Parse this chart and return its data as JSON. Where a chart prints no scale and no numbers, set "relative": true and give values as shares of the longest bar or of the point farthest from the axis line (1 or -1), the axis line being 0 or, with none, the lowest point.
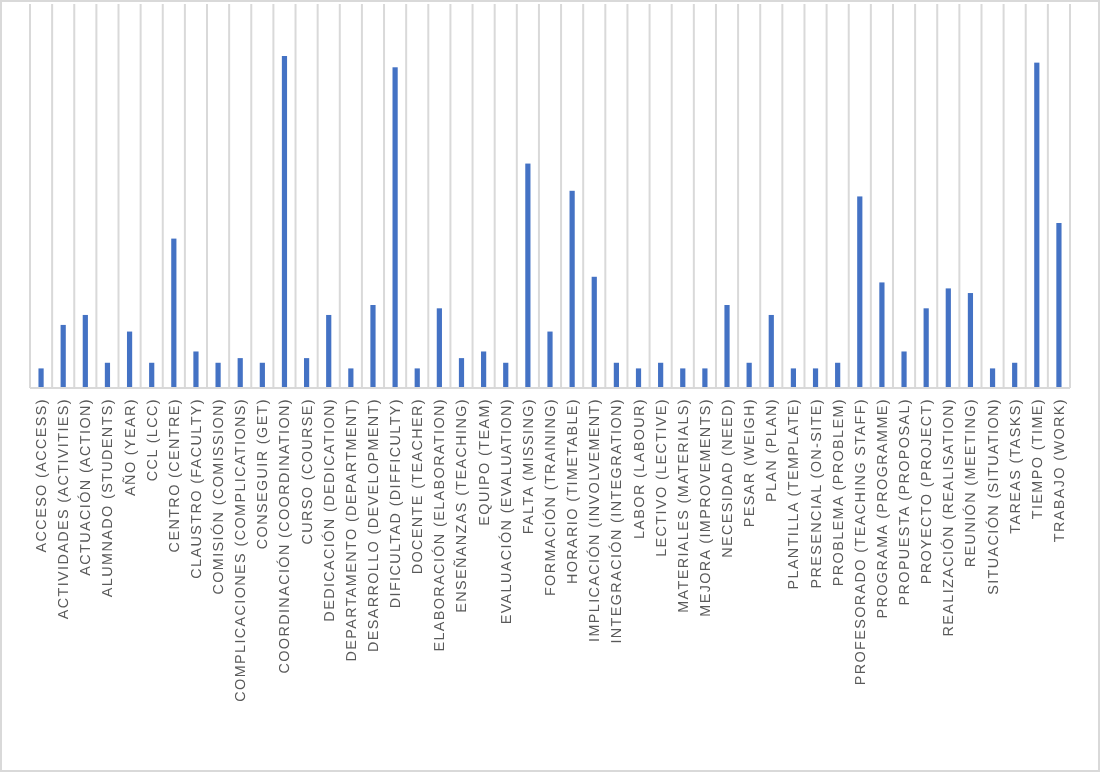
{
  "chart_data": {
    "type": "bar",
    "relative": true,
    "grid": "x",
    "color": "#4472c4",
    "categories": [
      "ACCESO (ACCESS)",
      "ACTIVIDADES (ACTIVITIES)",
      "ACTUACIÓN (ACTION)",
      "ALUMNADO (STUDENTS)",
      "AÑO (YEAR)",
      "CCL (LCC)",
      "CENTRO (CENTRE)",
      "CLAUSTRO (FACULTY)",
      "COMISIÓN (COMISSION)",
      "COMPLICACIONES (COMPLICATIONS)",
      "CONSEGUIR (GET)",
      "COORDINACIÓN (COORDINATION)",
      "CURSO (COURSE)",
      "DEDICACIÓN (DEDICATION)",
      "DEPARTAMENTO (DEPARTMENT)",
      "DESARROLLO (DEVELOPMENT)",
      "DIFICULTAD (DIFFICULTY)",
      "DOCENTE (TEACHER)",
      "ELABORACIÓN (ELABORATION)",
      "ENSEÑANZAS (TEACHING)",
      "EQUIPO (TEAM)",
      "EVALUACIÓN (EVALUATION)",
      "FALTA (MISSING)",
      "FORMACIÓN (TRAINING)",
      "HORARIO (TIMETABLE)",
      "IMPLICACIÓN (INVOLVEMENT)",
      "INTEGRACIÓN (INTEGRATION)",
      "LABOR (LABOUR)",
      "LECTIVO (LECTIVE)",
      "MATERIALES (MATERIALS)",
      "MEJORA (IMPROVEMENTS)",
      "NECESIDAD (NEED)",
      "PESAR (WEIGH)",
      "PLAN (PLAN)",
      "PLANTILLA (TEMPLATE)",
      "PRESENCIAL (ON-SITE)",
      "PROBLEMA (PROBLEM)",
      "PROFESORADO (TEACHING STAFF)",
      "PROGRAMA (PROGRAMME)",
      "PROPUESTA (PROPOSAL)",
      "PROYECTO (PROJECT)",
      "REALIZACIÓN (REALISATION)",
      "REUNIÓN (MEETING)",
      "SITUACIÓN (SITUATION)",
      "TAREAS (TASKS)",
      "TIEMPO (TIME)",
      "TRABAJO (WORK)"
    ],
    "values": [
      0.059,
      0.19,
      0.22,
      0.076,
      0.17,
      0.076,
      0.45,
      0.11,
      0.076,
      0.09,
      0.076,
      1,
      0.09,
      0.22,
      0.059,
      0.25,
      0.966,
      0.059,
      0.24,
      0.09,
      0.11,
      0.076,
      0.676,
      0.17,
      0.594,
      0.335,
      0.076,
      0.059,
      0.076,
      0.059,
      0.059,
      0.25,
      0.076,
      0.22,
      0.059,
      0.059,
      0.076,
      0.577,
      0.318,
      0.11,
      0.24,
      0.3,
      0.286,
      0.059,
      0.076,
      0.98,
      0.497
    ]
  }
}
